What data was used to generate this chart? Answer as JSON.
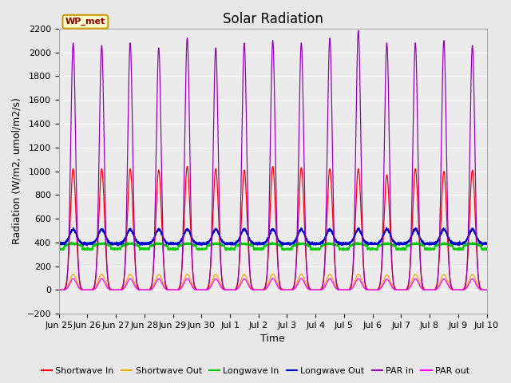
{
  "title": "Solar Radiation",
  "ylabel": "Radiation (W/m2, umol/m2/s)",
  "xlabel": "Time",
  "ylim": [
    -200,
    2200
  ],
  "yticks": [
    -200,
    0,
    200,
    400,
    600,
    800,
    1000,
    1200,
    1400,
    1600,
    1800,
    2000,
    2200
  ],
  "fig_bg_color": "#e8e8e8",
  "plot_bg_color": "#ebebeb",
  "station_label": "WP_met",
  "legend": [
    {
      "label": "Shortwave In",
      "color": "#ff0000"
    },
    {
      "label": "Shortwave Out",
      "color": "#ffa500"
    },
    {
      "label": "Longwave In",
      "color": "#00cc00"
    },
    {
      "label": "Longwave Out",
      "color": "#0000cc"
    },
    {
      "label": "PAR in",
      "color": "#9900bb"
    },
    {
      "label": "PAR out",
      "color": "#ff00ff"
    }
  ],
  "n_days": 15,
  "shortwave_in_peak": 1020,
  "shortwave_out_peak": 135,
  "longwave_in_base": 345,
  "longwave_in_day": 390,
  "longwave_out_base": 390,
  "longwave_out_day": 510,
  "par_in_peak": 2080,
  "par_out_peak": 95,
  "x_tick_labels": [
    "Jun 25",
    "Jun 26",
    "Jun 27",
    "Jun 28",
    "Jun 29",
    "Jun 30",
    "Jul 1",
    "Jul 2",
    "Jul 3",
    "Jul 4",
    "Jul 5",
    "Jul 6",
    "Jul 7",
    "Jul 8",
    "Jul 9",
    "Jul 10"
  ],
  "title_fontsize": 12,
  "label_fontsize": 9,
  "tick_fontsize": 8,
  "legend_fontsize": 8
}
